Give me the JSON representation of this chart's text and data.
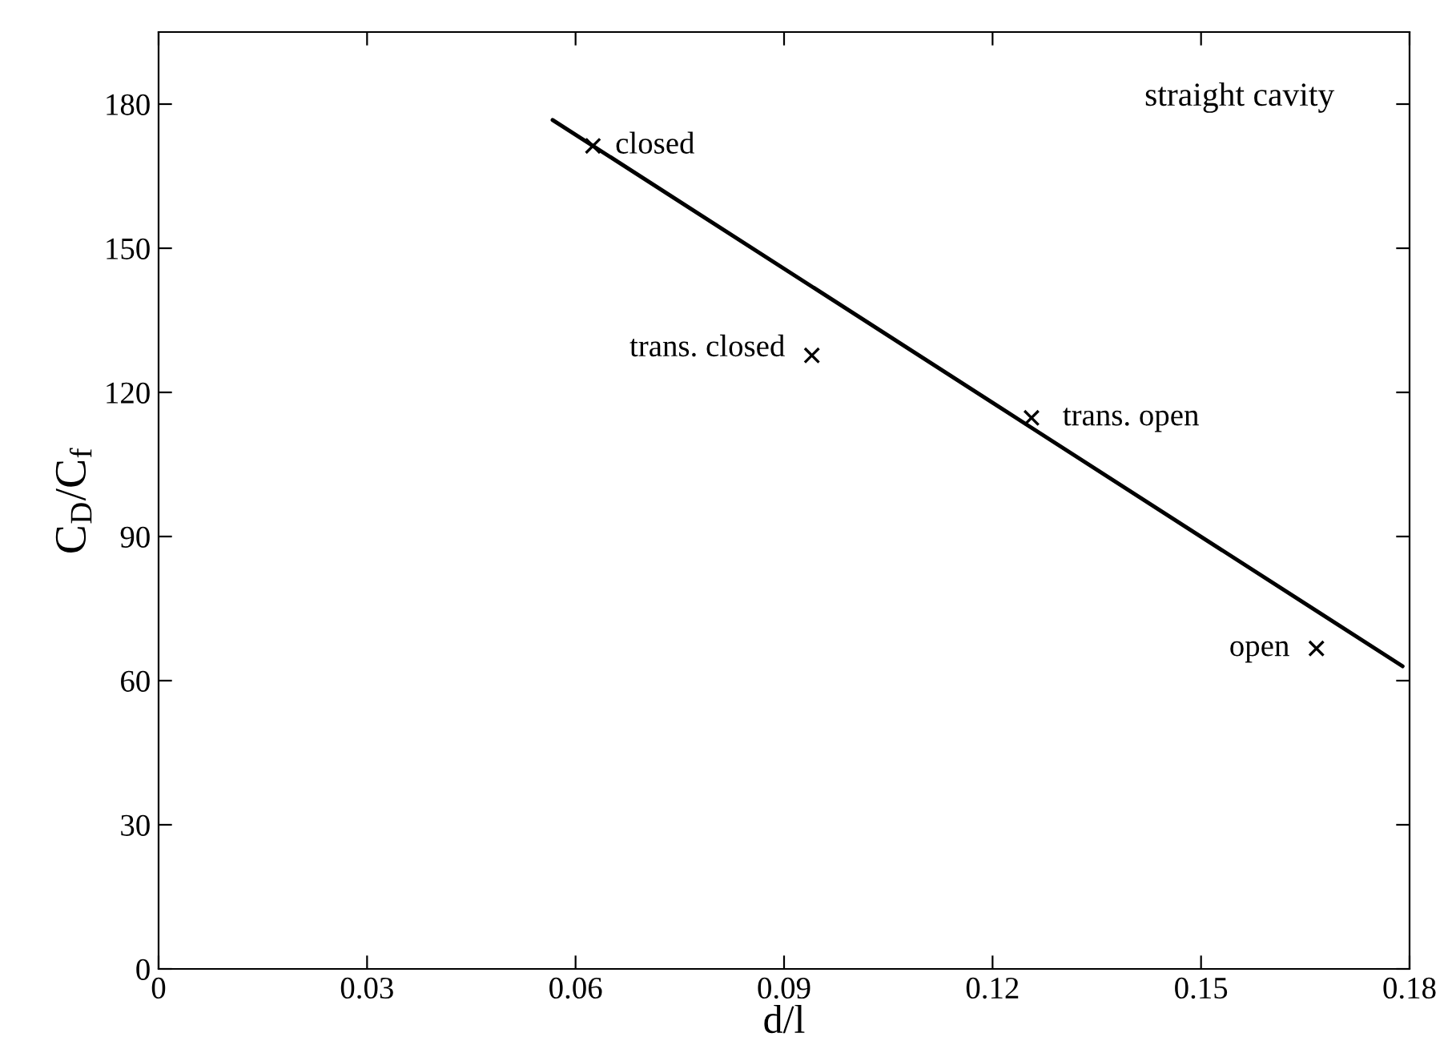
{
  "chart_data": {
    "type": "scatter",
    "xlabel": "d/l",
    "ylabel": "C$_{D}$/C$_{f}$",
    "xlim": [
      0,
      0.18
    ],
    "ylim": [
      0,
      195
    ],
    "xticks": [
      0,
      0.03,
      0.06,
      0.09,
      0.12,
      0.15,
      0.18
    ],
    "yticks": [
      0,
      30,
      60,
      90,
      120,
      150,
      180
    ],
    "grid": false,
    "legend": false,
    "series": [
      {
        "color": "#000000",
        "marker": "cross",
        "x": [
          0.0625,
          0.094,
          0.1256,
          0.1666
        ],
        "values": [
          171.3,
          127.7,
          114.7,
          66.7
        ]
      },
      {
        "type": "line",
        "color": "#000000",
        "line_style": "solid",
        "x": [
          0.0567,
          0.179
        ],
        "values": [
          176.7,
          63
        ]
      }
    ],
    "annotations": [
      {
        "text": "closed",
        "x": 0.0625,
        "y": 171.3
      },
      {
        "text": "trans. closed",
        "x": 0.094,
        "y": 127.7
      },
      {
        "text": "trans. open",
        "x": 0.1256,
        "y": 114.7
      },
      {
        "text": "open",
        "x": 0.1666,
        "y": 66.7
      },
      "straight cavity"
    ]
  }
}
